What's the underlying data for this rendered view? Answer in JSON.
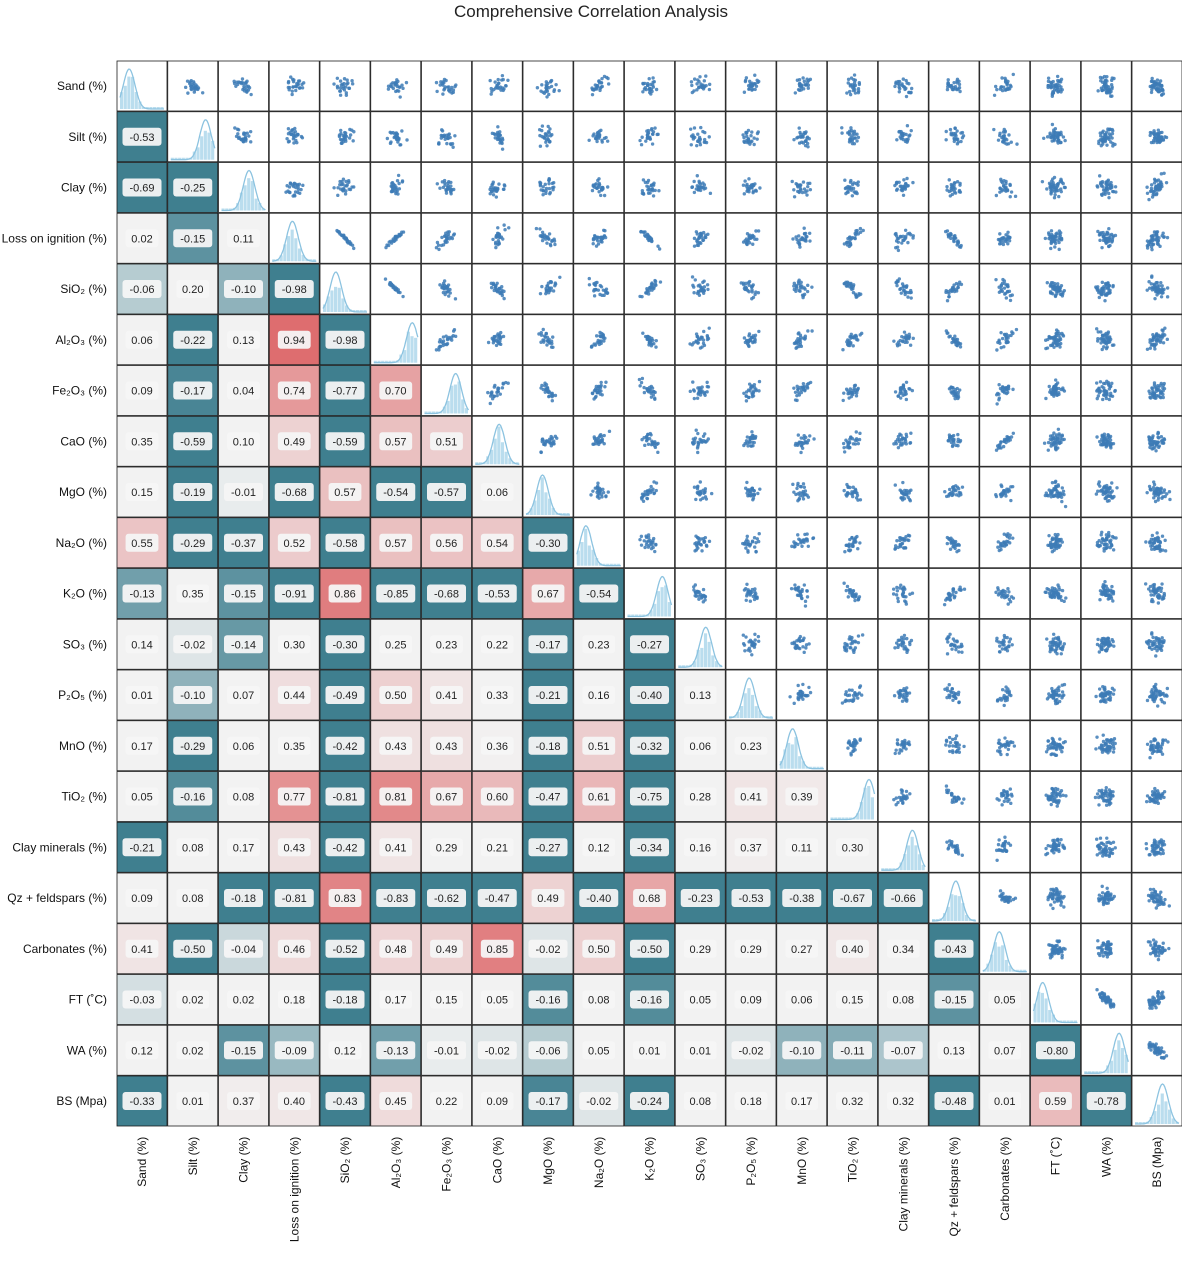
{
  "chart_data": {
    "type": "heatmap",
    "title": "Comprehensive Correlation Analysis",
    "variables": [
      "Sand (%)",
      "Silt (%)",
      "Clay (%)",
      "Loss on ignition (%)",
      "SiO₂ (%)",
      "Al₂O₃ (%)",
      "Fe₂O₃ (%)",
      "CaO (%)",
      "MgO (%)",
      "Na₂O (%)",
      "K₂O (%)",
      "SO₃ (%)",
      "P₂O₅ (%)",
      "MnO (%)",
      "TiO₂ (%)",
      "Clay minerals (%)",
      "Qz + feldspars (%)",
      "Carbonates (%)",
      "FT (˚C)",
      "WA (%)",
      "BS (Mpa)"
    ],
    "lower_triangle_correlations": [
      [],
      [
        "-0.53"
      ],
      [
        "-0.69",
        "-0.25"
      ],
      [
        "0.02",
        "-0.15",
        "0.11"
      ],
      [
        "-0.06",
        "0.20",
        "-0.10",
        "-0.98"
      ],
      [
        "0.06",
        "-0.22",
        "0.13",
        "0.94",
        "-0.98"
      ],
      [
        "0.09",
        "-0.17",
        "0.04",
        "0.74",
        "-0.77",
        "0.70"
      ],
      [
        "0.35",
        "-0.59",
        "0.10",
        "0.49",
        "-0.59",
        "0.57",
        "0.51"
      ],
      [
        "0.15",
        "-0.19",
        "-0.01",
        "-0.68",
        "0.57",
        "-0.54",
        "-0.57",
        "0.06"
      ],
      [
        "0.55",
        "-0.29",
        "-0.37",
        "0.52",
        "-0.58",
        "0.57",
        "0.56",
        "0.54",
        "-0.30"
      ],
      [
        "-0.13",
        "0.35",
        "-0.15",
        "-0.91",
        "0.86",
        "-0.85",
        "-0.68",
        "-0.53",
        "0.67",
        "-0.54"
      ],
      [
        "0.14",
        "-0.02",
        "-0.14",
        "0.30",
        "-0.30",
        "0.25",
        "0.23",
        "0.22",
        "-0.17",
        "0.23",
        "-0.27"
      ],
      [
        "0.01",
        "-0.10",
        "0.07",
        "0.44",
        "-0.49",
        "0.50",
        "0.41",
        "0.33",
        "-0.21",
        "0.16",
        "-0.40",
        "0.13"
      ],
      [
        "0.17",
        "-0.29",
        "0.06",
        "0.35",
        "-0.42",
        "0.43",
        "0.43",
        "0.36",
        "-0.18",
        "0.51",
        "-0.32",
        "0.06",
        "0.23"
      ],
      [
        "0.05",
        "-0.16",
        "0.08",
        "0.77",
        "-0.81",
        "0.81",
        "0.67",
        "0.60",
        "-0.47",
        "0.61",
        "-0.75",
        "0.28",
        "0.41",
        "0.39"
      ],
      [
        "-0.21",
        "0.08",
        "0.17",
        "0.43",
        "-0.42",
        "0.41",
        "0.29",
        "0.21",
        "-0.27",
        "0.12",
        "-0.34",
        "0.16",
        "0.37",
        "0.11",
        "0.30"
      ],
      [
        "0.09",
        "0.08",
        "-0.18",
        "-0.81",
        "0.83",
        "-0.83",
        "-0.62",
        "-0.47",
        "0.49",
        "-0.40",
        "0.68",
        "-0.23",
        "-0.53",
        "-0.38",
        "-0.67",
        "-0.66"
      ],
      [
        "0.41",
        "-0.50",
        "-0.04",
        "0.46",
        "-0.52",
        "0.48",
        "0.49",
        "0.85",
        "-0.02",
        "0.50",
        "-0.50",
        "0.29",
        "0.29",
        "0.27",
        "0.40",
        "0.34",
        "-0.43"
      ],
      [
        "-0.03",
        "0.02",
        "0.02",
        "0.18",
        "-0.18",
        "0.17",
        "0.15",
        "0.05",
        "-0.16",
        "0.08",
        "-0.16",
        "0.05",
        "0.09",
        "0.06",
        "0.15",
        "0.08",
        "-0.15",
        "0.05"
      ],
      [
        "0.12",
        "0.02",
        "-0.15",
        "-0.09",
        "0.12",
        "-0.13",
        "-0.01",
        "-0.02",
        "-0.06",
        "0.05",
        "0.01",
        "0.01",
        "-0.02",
        "-0.10",
        "-0.11",
        "-0.07",
        "0.13",
        "0.07",
        "-0.80"
      ],
      [
        "-0.33",
        "0.01",
        "0.37",
        "0.40",
        "-0.43",
        "0.45",
        "0.22",
        "0.09",
        "-0.17",
        "-0.02",
        "-0.24",
        "0.08",
        "0.18",
        "0.17",
        "0.32",
        "0.32",
        "-0.48",
        "0.01",
        "0.59",
        "-0.78"
      ]
    ],
    "diagonal": "histogram with KDE",
    "upper_triangle": "scatter plots",
    "colorscale": {
      "negative": "#3f7f8f",
      "neutral": "#f2f2f2",
      "positive": "#de6d6f"
    },
    "scatter_color": "#3d7bb6",
    "hist_color": "#a9d4ea"
  }
}
